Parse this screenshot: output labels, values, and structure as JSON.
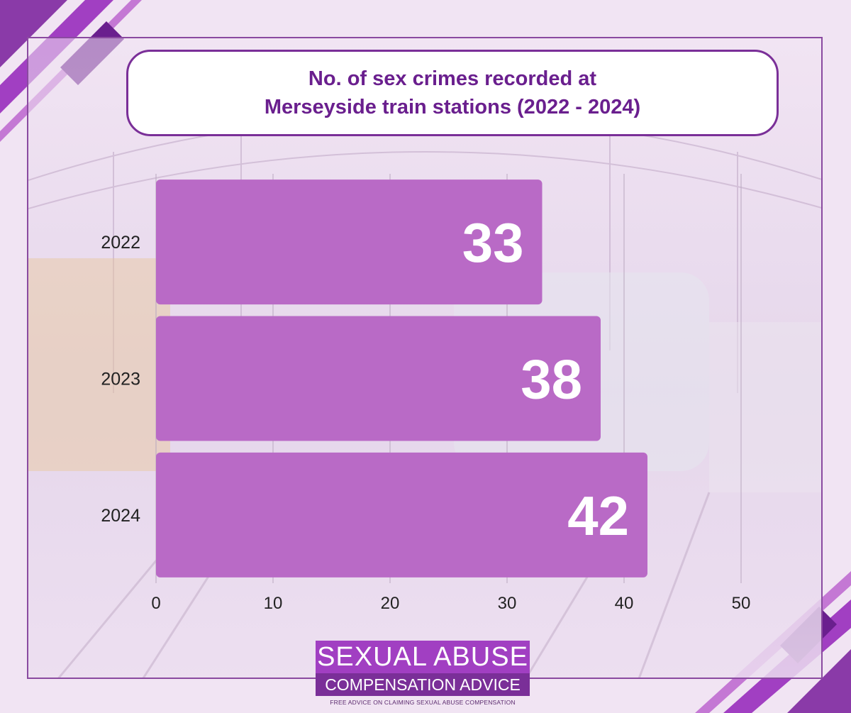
{
  "colors": {
    "bar": "#b96ac6",
    "title_text": "#6a1f8e",
    "title_border": "#7a2f98",
    "accent_dark": "#7a2f98",
    "accent_mid": "#a13fc2",
    "accent_light": "#c478d4"
  },
  "title": {
    "line1": "No. of sex crimes recorded at",
    "line2": "Merseyside train stations (2022 - 2024)"
  },
  "chart_data": {
    "type": "bar",
    "orientation": "horizontal",
    "categories": [
      "2022",
      "2023",
      "2024"
    ],
    "values": [
      33,
      38,
      42
    ],
    "data_labels": [
      "33",
      "38",
      "42"
    ],
    "xlim": [
      0,
      50
    ],
    "x_ticks": [
      "0",
      "10",
      "20",
      "30",
      "40",
      "50"
    ],
    "grid": "vertical",
    "title": "No. of sex crimes recorded at Merseyside train stations (2022 - 2024)"
  },
  "logo": {
    "line1": "SEXUAL ABUSE",
    "line2": "COMPENSATION ADVICE",
    "tagline": "FREE ADVICE ON CLAIMING SEXUAL ABUSE COMPENSATION"
  }
}
